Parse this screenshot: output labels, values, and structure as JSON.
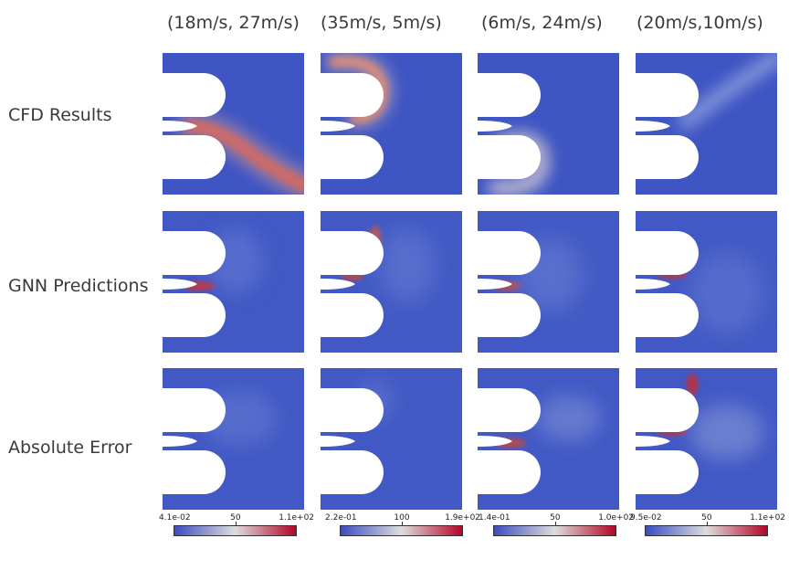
{
  "columns": [
    {
      "title": "(18m/s, 27m/s)"
    },
    {
      "title": "(35m/s, 5m/s)"
    },
    {
      "title": "(6m/s, 24m/s)"
    },
    {
      "title": "(20m/s,10m/s)"
    }
  ],
  "rows": [
    {
      "label": "CFD Results"
    },
    {
      "label": "GNN Predictions"
    },
    {
      "label": "Absolute Error"
    }
  ],
  "colorbars": [
    {
      "min": "4.1e-02",
      "mid": "50",
      "max": "1.1e+02"
    },
    {
      "min": "2.2e-01",
      "mid": "100",
      "max": "1.9e+02"
    },
    {
      "min": "1.4e-01",
      "mid": "50",
      "max": "1.0e+02"
    },
    {
      "min": "9.5e-02",
      "mid": "50",
      "max": "1.1e+02"
    }
  ],
  "colors": {
    "field_low": "#3b4cc0",
    "field_high": "#b40426",
    "mid": "#dddddd",
    "background": "#ffffff"
  }
}
